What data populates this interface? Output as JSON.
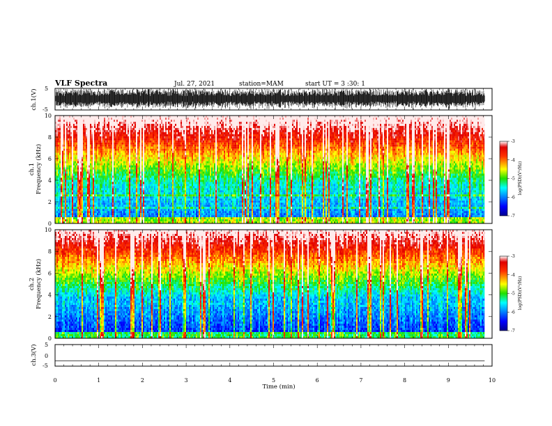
{
  "header": {
    "title": "VLF Spectra",
    "date": "Jul. 27, 2021",
    "station": "station=MAM",
    "start": "start UT =  3 :30: 1"
  },
  "chart_data": [
    {
      "type": "line",
      "name": "ch1-waveform",
      "ylabel": "ch.1(V)",
      "ylim": [
        -5,
        5
      ],
      "yticks": [
        "5",
        "-5"
      ],
      "xlim": [
        0,
        10
      ],
      "note_visible": "dense black waveform",
      "color": "#000000"
    },
    {
      "type": "heatmap",
      "name": "ch1-spectrogram",
      "ylabel_line1": "ch.1",
      "ylabel_line2": "Frequency (kHz)",
      "ylim": [
        0,
        10
      ],
      "yticks": [
        "0",
        "2",
        "4",
        "6",
        "8",
        "10"
      ],
      "xlim": [
        0,
        10
      ],
      "data_xmax": 9.83,
      "colorbar": {
        "label": "log(PSD)(V²/Hz)",
        "ticks": [
          "-3",
          "-4",
          "-5",
          "-6",
          "-7"
        ],
        "range": [
          -7,
          -3
        ]
      }
    },
    {
      "type": "heatmap",
      "name": "ch2-spectrogram",
      "ylabel_line1": "ch.2",
      "ylabel_line2": "Frequency (kHz)",
      "ylim": [
        0,
        10
      ],
      "yticks": [
        "0",
        "2",
        "4",
        "6",
        "8",
        "10"
      ],
      "xlim": [
        0,
        10
      ],
      "data_xmax": 9.83,
      "colorbar": {
        "label": "log(PSD)(V²/Hz)",
        "ticks": [
          "-3",
          "-4",
          "-5",
          "-6",
          "-7"
        ],
        "range": [
          -7,
          -3
        ]
      }
    },
    {
      "type": "line",
      "name": "ch3-waveform",
      "ylabel": "ch.3(V)",
      "ylim": [
        -5,
        5
      ],
      "yticks": [
        "5",
        "0",
        "-5"
      ],
      "xlim": [
        0,
        10
      ],
      "x": [
        0,
        9.83
      ],
      "y": [
        -2.5,
        -2.5
      ],
      "color": "#000000"
    }
  ],
  "xaxis": {
    "label": "Time (min)",
    "ticks": [
      "0",
      "1",
      "2",
      "3",
      "4",
      "5",
      "6",
      "7",
      "8",
      "9",
      "10"
    ]
  }
}
